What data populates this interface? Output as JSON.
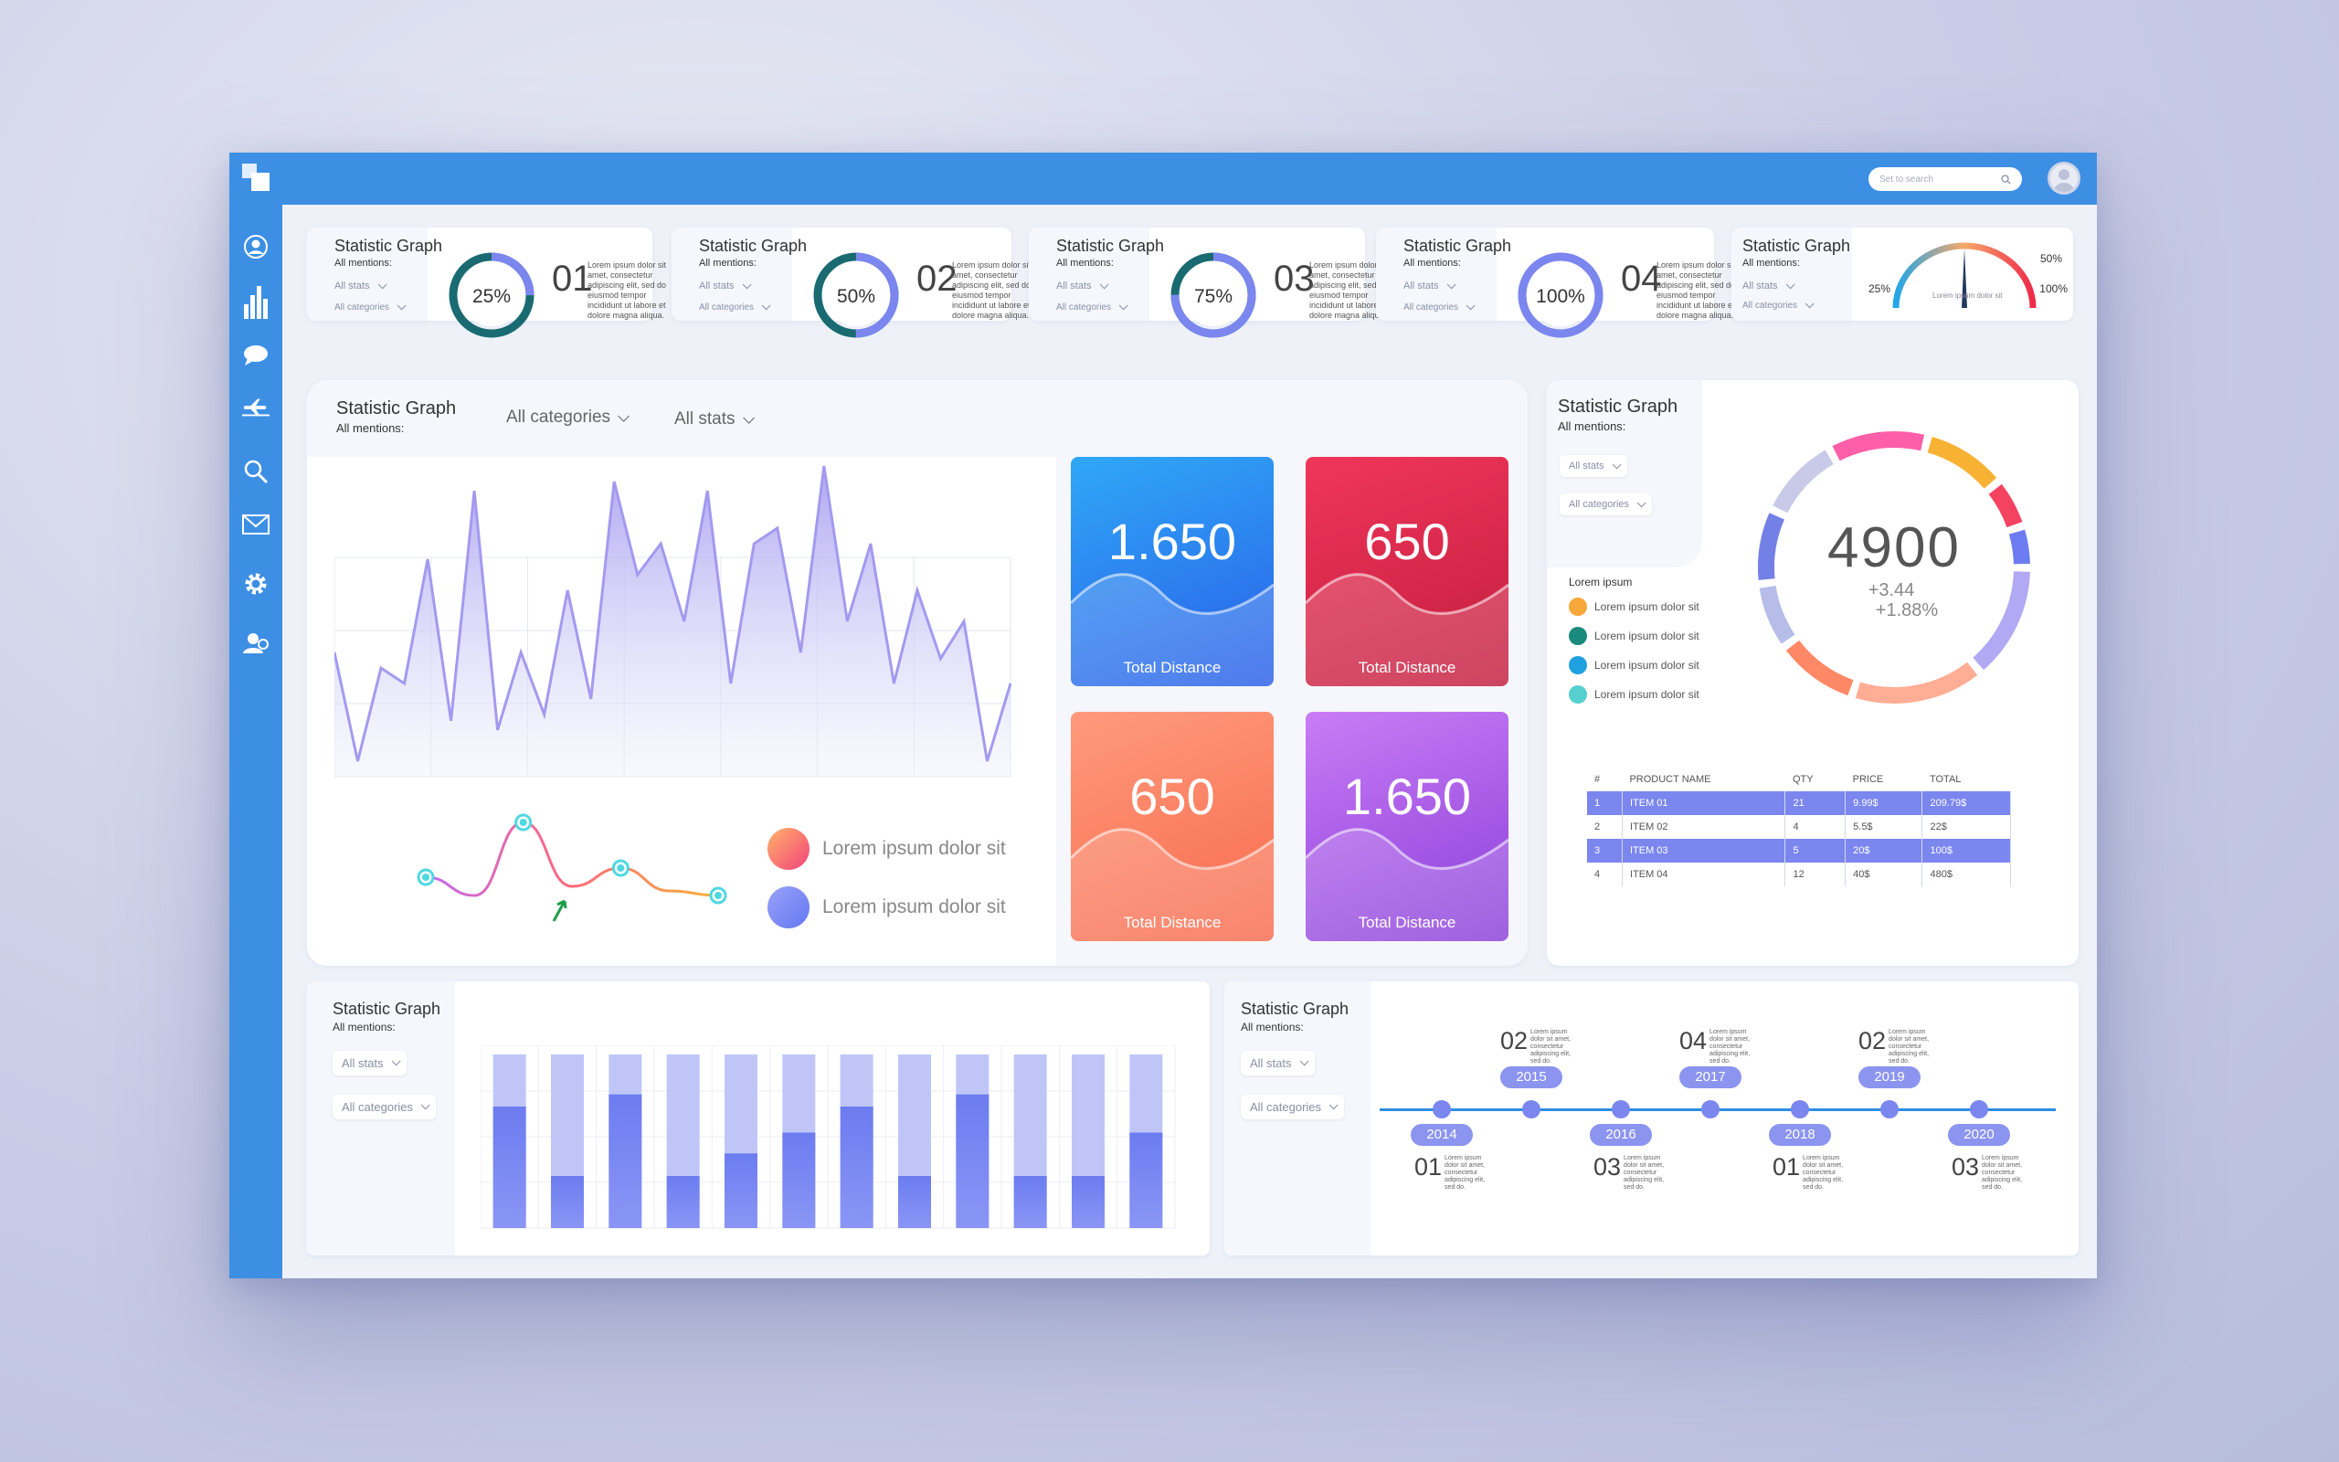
{
  "topbar": {
    "search_placeholder": "Set to search"
  },
  "sidebar": {
    "icons": [
      "user-icon",
      "bar-chart-icon",
      "chat-icon",
      "plane-icon",
      "search-icon",
      "mail-icon",
      "gear-icon",
      "users-icon"
    ]
  },
  "stat_cards": [
    {
      "title": "Statistic Graph",
      "subtitle": "All mentions:",
      "filter1": "All stats",
      "filter2": "All categories",
      "percent": "25%",
      "progress": 0.25,
      "number": "01",
      "text": "Lorem ipsum dolor sit amet, consectetur adipiscing elit, sed do eiusmod tempor incididunt ut labore et dolore magna aliqua."
    },
    {
      "title": "Statistic Graph",
      "subtitle": "All mentions:",
      "filter1": "All stats",
      "filter2": "All categories",
      "percent": "50%",
      "progress": 0.5,
      "number": "02",
      "text": "Lorem ipsum dolor sit amet, consectetur adipiscing elit, sed do eiusmod tempor incididunt ut labore et dolore magna aliqua."
    },
    {
      "title": "Statistic Graph",
      "subtitle": "All mentions:",
      "filter1": "All stats",
      "filter2": "All categories",
      "percent": "75%",
      "progress": 0.75,
      "number": "03",
      "text": "Lorem ipsum dolor sit amet, consectetur adipiscing elit, sed do eiusmod tempor incididunt ut labore et dolore magna aliqua."
    },
    {
      "title": "Statistic Graph",
      "subtitle": "All mentions:",
      "filter1": "All stats",
      "filter2": "All categories",
      "percent": "100%",
      "progress": 1.0,
      "number": "04",
      "text": "Lorem ipsum dolor sit amet, consectetur adipiscing elit, sed do eiusmod tempor incididunt ut labore et dolore magna aliqua."
    }
  ],
  "gauge_card": {
    "title": "Statistic Graph",
    "subtitle": "All mentions:",
    "filter1": "All stats",
    "filter2": "All categories",
    "label_left": "25%",
    "label_top": "50%",
    "label_right": "100%",
    "caption": "Lorem ipsum dolor sit",
    "needle_value": 0.5
  },
  "main_panel": {
    "title": "Statistic Graph",
    "subtitle": "All mentions:",
    "filter_categories": "All categories",
    "filter_stats": "All stats",
    "legend": [
      {
        "label": "Lorem ipsum dolor sit",
        "color": "#f77b7b"
      },
      {
        "label": "Lorem ipsum dolor sit",
        "color": "#7b8cf3"
      }
    ],
    "tiles": [
      {
        "value": "1.650",
        "label": "Total Distance",
        "color1": "#2fa8f7",
        "color2": "#2a5ee8"
      },
      {
        "value": "650",
        "label": "Total Distance",
        "color1": "#f0365a",
        "color2": "#c21d3e"
      },
      {
        "value": "650",
        "label": "Total Distance",
        "color1": "#ff9a7c",
        "color2": "#f76a4d"
      },
      {
        "value": "1.650",
        "label": "Total Distance",
        "color1": "#c97cf5",
        "color2": "#8a3fd9"
      }
    ]
  },
  "donut_panel": {
    "title": "Statistic Graph",
    "subtitle": "All mentions:",
    "filter1": "All stats",
    "filter2": "All categories",
    "total": "4900",
    "delta1": "+3.44",
    "delta2": "+1.88%",
    "legend_title": "Lorem ipsum",
    "legend": [
      {
        "label": "Lorem ipsum  dolor sit",
        "color": "#f7a838"
      },
      {
        "label": "Lorem ipsum  dolor sit",
        "color": "#1a8a7c"
      },
      {
        "label": "Lorem ipsum  dolor sit",
        "color": "#1fa0e0"
      },
      {
        "label": "Lorem ipsum  dolor sit",
        "color": "#55d0cf"
      }
    ],
    "table": {
      "headers": [
        "#",
        "PRODUCT NAME",
        "QTY",
        "PRICE",
        "TOTAL"
      ],
      "rows": [
        [
          "1",
          "ITEM 01",
          "21",
          "9.99$",
          "209.79$"
        ],
        [
          "2",
          "ITEM 02",
          "4",
          "5.5$",
          "22$"
        ],
        [
          "3",
          "ITEM 03",
          "5",
          "20$",
          "100$"
        ],
        [
          "4",
          "ITEM 04",
          "12",
          "40$",
          "480$"
        ]
      ]
    }
  },
  "bar_panel": {
    "title": "Statistic Graph",
    "subtitle": "All mentions:",
    "filter1": "All stats",
    "filter2": "All categories"
  },
  "timeline_panel": {
    "title": "Statistic Graph",
    "subtitle": "All mentions:",
    "filter1": "All stats",
    "filter2": "All categories",
    "top_items": [
      {
        "number": "02",
        "year": "2015"
      },
      {
        "number": "04",
        "year": "2017"
      },
      {
        "number": "02",
        "year": "2019"
      }
    ],
    "bottom_items": [
      {
        "number": "01",
        "year": "2014"
      },
      {
        "number": "03",
        "year": "2016"
      },
      {
        "number": "01",
        "year": "2018"
      },
      {
        "number": "03",
        "year": "2020"
      }
    ],
    "text": "Lorem ipsum dolor sit amet, consectetur adipiscing elit, sed do."
  },
  "chart_data": [
    {
      "type": "area",
      "series": [
        {
          "values": [
            40,
            5,
            35,
            30,
            70,
            18,
            92,
            15,
            40,
            20,
            60,
            25,
            95,
            65,
            75,
            50,
            92,
            30,
            75,
            80,
            40,
            100,
            50,
            75,
            30,
            60,
            38,
            50,
            5,
            30
          ]
        }
      ],
      "ylim": [
        0,
        100
      ]
    },
    {
      "type": "line",
      "x": [
        0,
        1,
        2,
        3,
        4,
        5,
        6
      ],
      "series": [
        {
          "values": [
            30,
            10,
            90,
            20,
            40,
            15,
            10
          ]
        }
      ],
      "ylim": [
        0,
        100
      ]
    },
    {
      "type": "bar",
      "categories": [
        "1",
        "2",
        "3",
        "4",
        "5",
        "6",
        "7",
        "8",
        "9",
        "10",
        "11",
        "12"
      ],
      "series": [
        {
          "name": "",
          "values": [
            70,
            30,
            77,
            30,
            43,
            55,
            70,
            30,
            77,
            30,
            30,
            55
          ]
        },
        {
          "name": "",
          "values": [
            100,
            100,
            100,
            100,
            100,
            100,
            100,
            100,
            100,
            100,
            100,
            100
          ]
        }
      ],
      "ylim": [
        0,
        100
      ]
    },
    {
      "type": "pie",
      "values": [
        12,
        10,
        6,
        5,
        14,
        16,
        10,
        8,
        9,
        10
      ],
      "colors": [
        "#ff5ea8",
        "#f7b234",
        "#f44361",
        "#6c7cf0",
        "#b3a8f3",
        "#ffad94",
        "#ff8866",
        "#b5bde8",
        "#7380e6",
        "#c8cae8"
      ]
    }
  ]
}
